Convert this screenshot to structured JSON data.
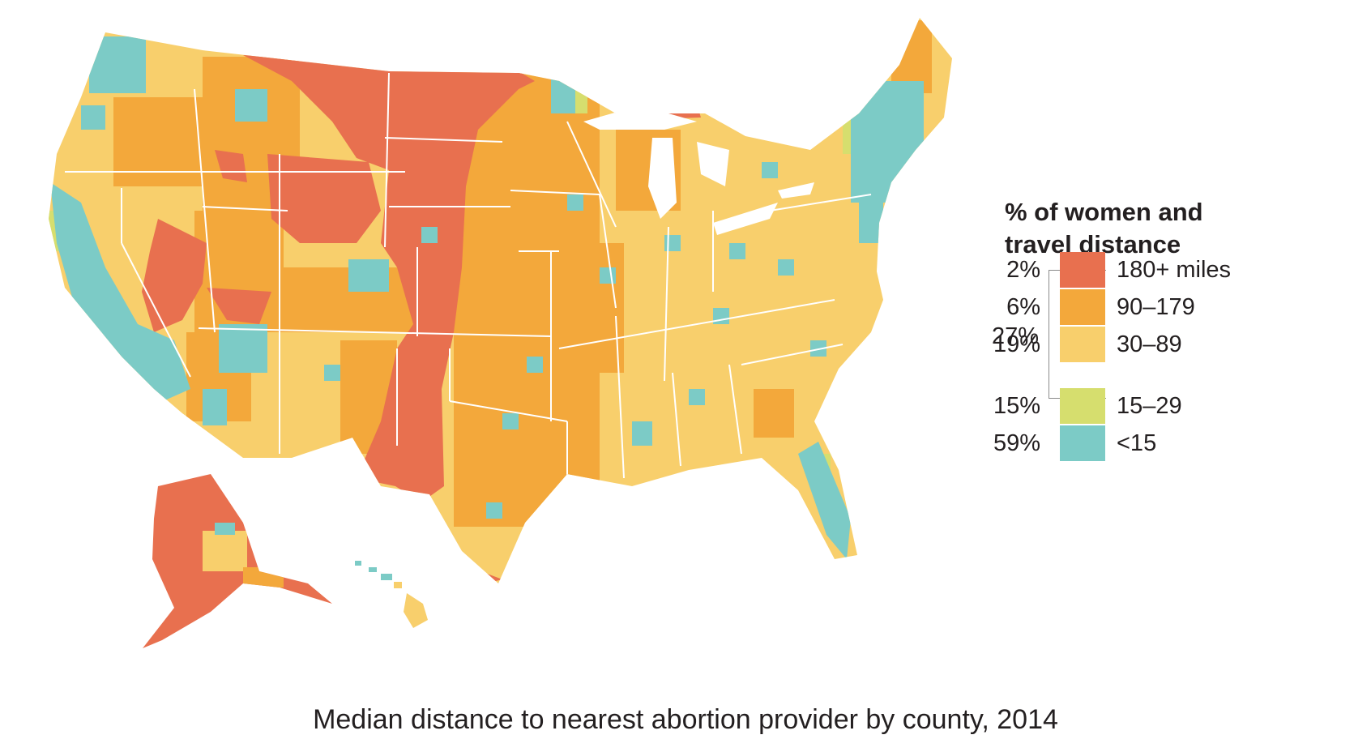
{
  "legend": {
    "title_line1": "% of women and",
    "title_line2": "travel distance",
    "group_label": "27%",
    "items": [
      {
        "pct": "2%",
        "range": "180+ miles",
        "color": "#e8704f"
      },
      {
        "pct": "6%",
        "range": "90–179",
        "color": "#f3a83b"
      },
      {
        "pct": "19%",
        "range": "30–89",
        "color": "#f8cf6c"
      },
      {
        "pct": "15%",
        "range": "15–29",
        "color": "#d6de6e"
      },
      {
        "pct": "59%",
        "range": "<15",
        "color": "#7ccbc6"
      }
    ]
  },
  "caption": "Median distance to nearest abortion provider by county, 2014"
}
